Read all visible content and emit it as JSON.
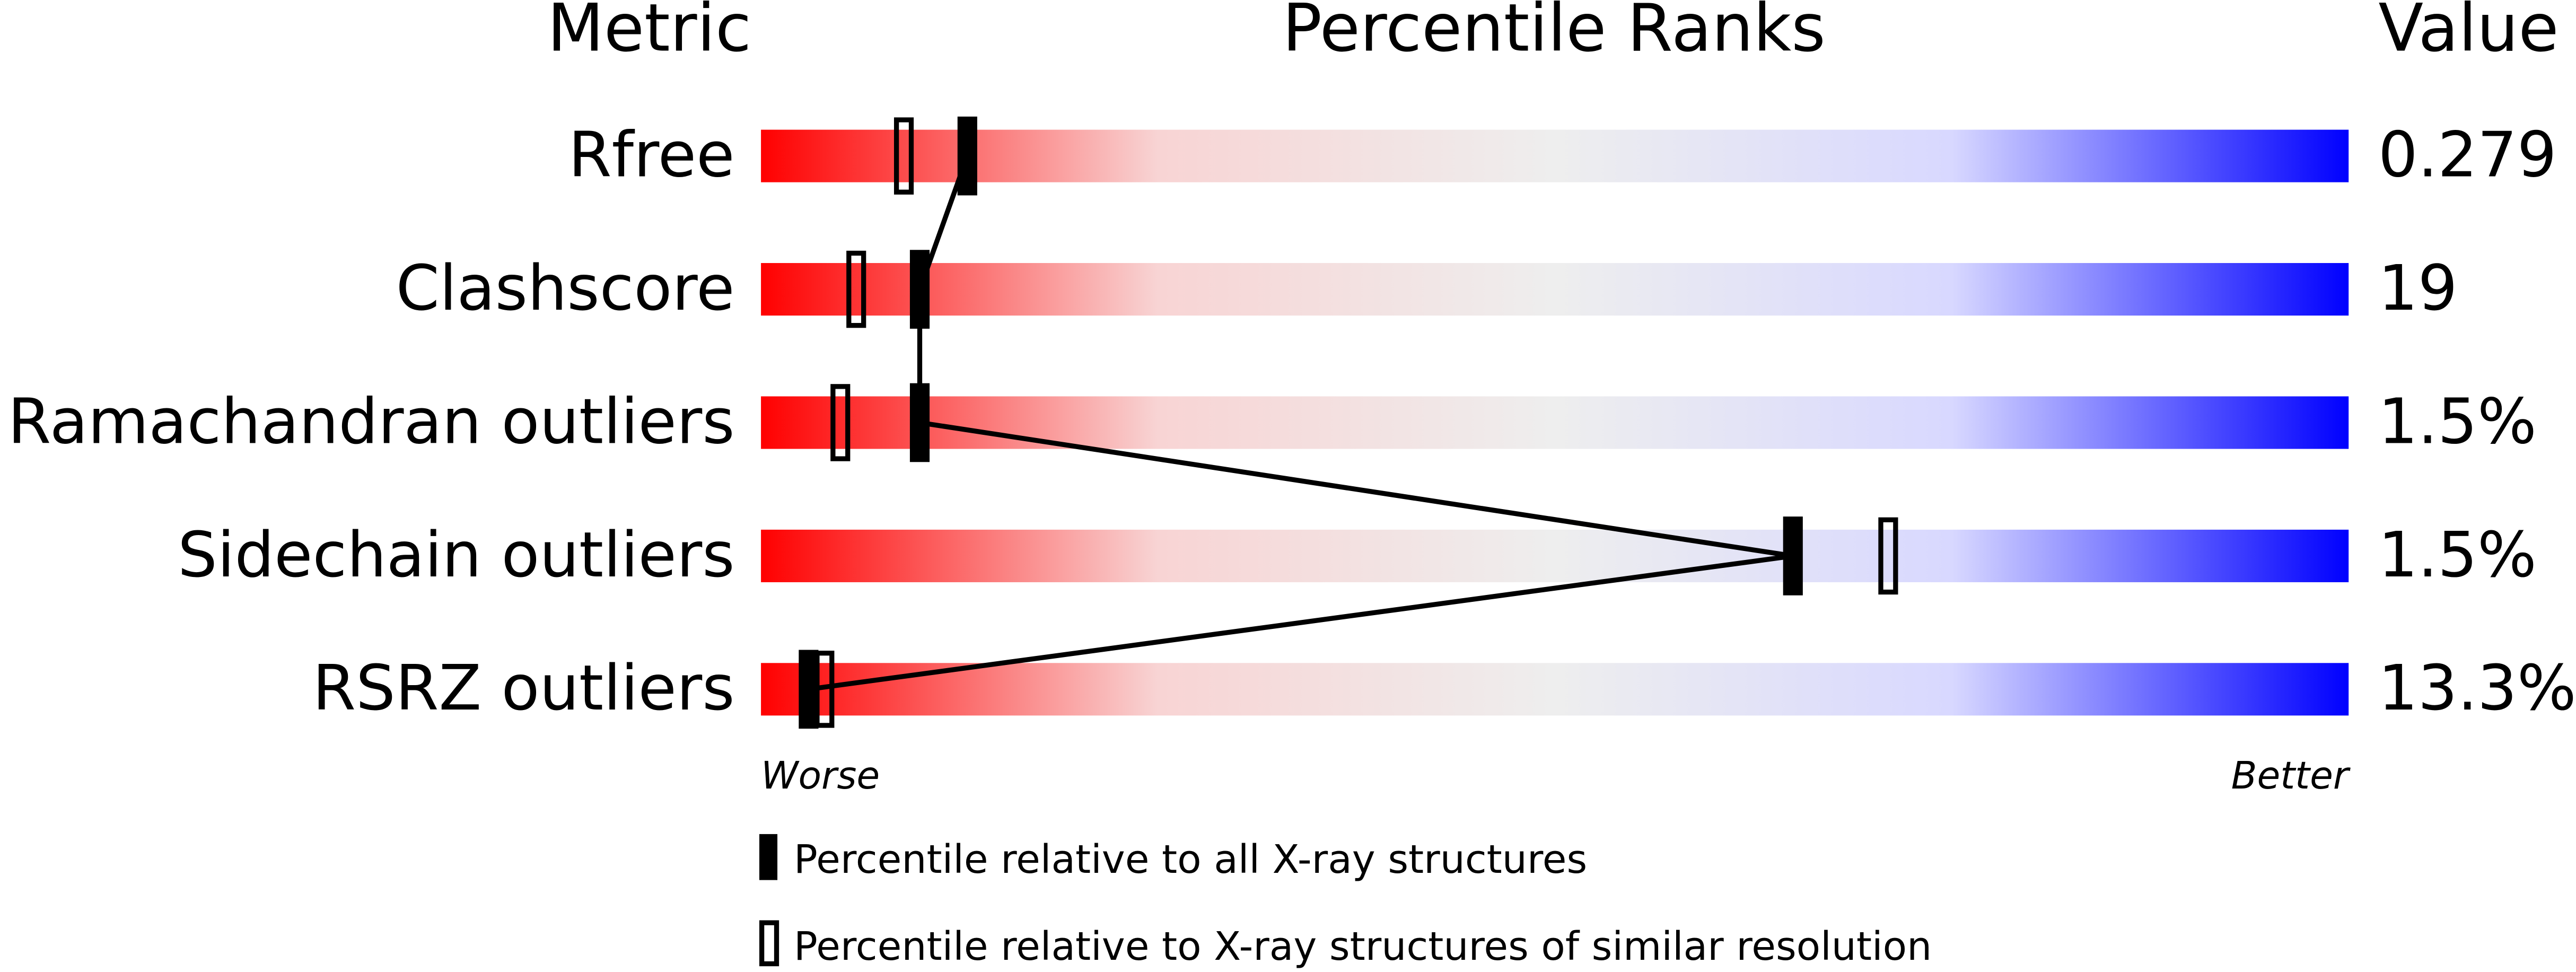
{
  "chart_data": {
    "type": "percentile",
    "headers": {
      "metric": "Metric",
      "ranks": "Percentile Ranks",
      "value": "Value"
    },
    "categories": [
      "Rfree",
      "Clashscore",
      "Ramachandran outliers",
      "Sidechain outliers",
      "RSRZ outliers"
    ],
    "metric_values": [
      "0.279",
      "19",
      "1.5%",
      "1.5%",
      "13.3%"
    ],
    "series": [
      {
        "name": "Percentile relative to all X-ray structures",
        "color": "#000000",
        "values": [
          13,
          10,
          10,
          65,
          3
        ]
      },
      {
        "name": "Percentile relative to X-ray structures of similar resolution",
        "color": "#000000",
        "values": [
          9,
          6,
          5,
          71,
          4
        ]
      }
    ],
    "xlim": [
      0,
      100
    ],
    "axis_labels": {
      "low": "Worse",
      "high": "Better"
    },
    "gradient": [
      "#ff0000",
      "#f8d4d4",
      "#eeeeee",
      "#d8d8ff",
      "#0000ff"
    ]
  }
}
